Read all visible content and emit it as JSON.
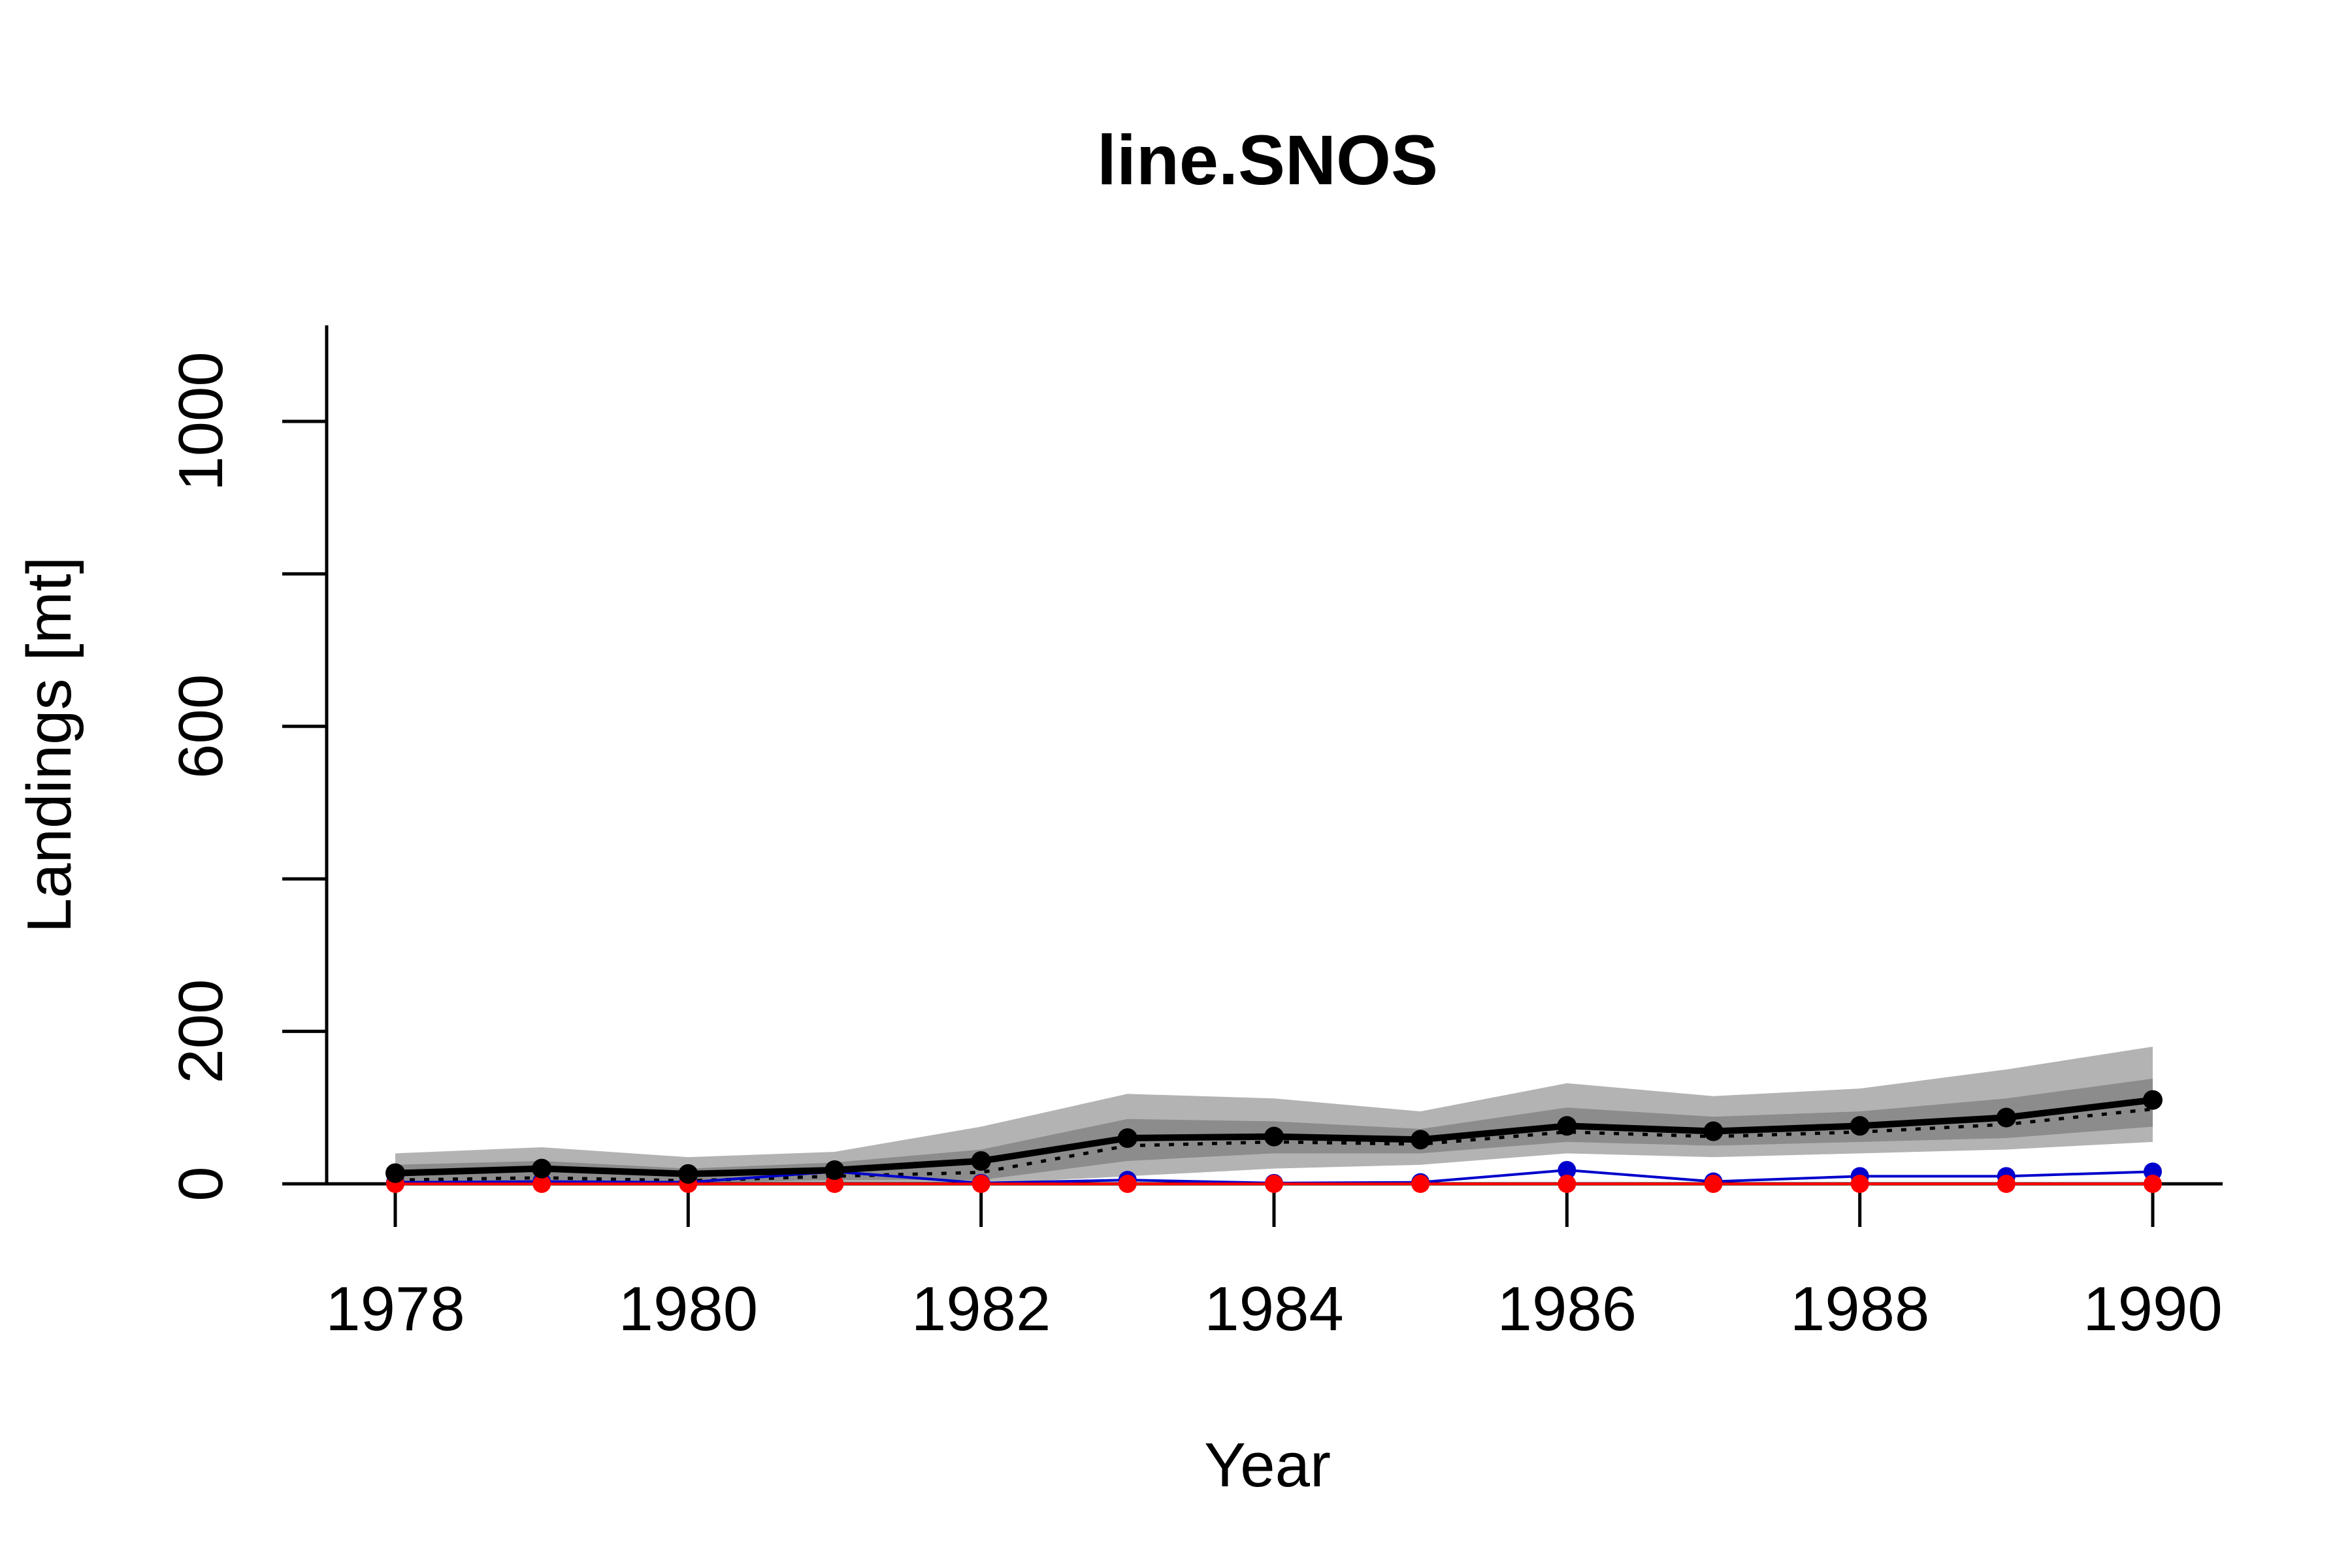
{
  "chart_data": {
    "type": "line",
    "title": "line.SNOS",
    "xlabel": "Year",
    "ylabel": "Landings [mt]",
    "xlim": [
      1977.5,
      1990.5
    ],
    "ylim": [
      0,
      1120
    ],
    "x_ticks": [
      1978,
      1980,
      1982,
      1984,
      1986,
      1988,
      1990
    ],
    "y_ticks": [
      0,
      200,
      400,
      600,
      800,
      1000
    ],
    "y_tick_labels": [
      "0",
      "200",
      "",
      "600",
      "",
      "1000"
    ],
    "grid": false,
    "x": [
      1978,
      1979,
      1980,
      1981,
      1982,
      1983,
      1984,
      1985,
      1986,
      1987,
      1988,
      1989,
      1990
    ],
    "bands": [
      {
        "color": "#b3b3b3",
        "lower": [
          0,
          0,
          0,
          0,
          0,
          10,
          20,
          25,
          40,
          35,
          40,
          45,
          55
        ],
        "upper": [
          40,
          48,
          35,
          42,
          75,
          118,
          112,
          95,
          132,
          115,
          125,
          150,
          180
        ]
      },
      {
        "color": "#8c8c8c",
        "lower": [
          2,
          4,
          1,
          5,
          5,
          30,
          40,
          40,
          55,
          50,
          55,
          60,
          75
        ],
        "upper": [
          25,
          30,
          20,
          28,
          45,
          85,
          82,
          72,
          100,
          88,
          95,
          112,
          138
        ]
      }
    ],
    "series": [
      {
        "role": "black line with points",
        "color": "#000000",
        "values": [
          14,
          20,
          13,
          18,
          30,
          60,
          62,
          58,
          76,
          69,
          76,
          87,
          110
        ]
      },
      {
        "role": "dotted line",
        "color": "#000000",
        "values": [
          5,
          8,
          4,
          10,
          15,
          50,
          55,
          52,
          68,
          62,
          68,
          78,
          98
        ]
      },
      {
        "role": "blue line with points",
        "color": "#0000cc",
        "values": [
          2,
          3,
          2,
          16,
          1,
          5,
          1,
          2,
          18,
          3,
          10,
          10,
          16
        ]
      },
      {
        "role": "red line with points",
        "color": "#ff0000",
        "values": [
          0,
          0,
          0,
          0,
          0,
          0,
          0,
          0,
          0,
          0,
          0,
          0,
          0
        ]
      }
    ]
  }
}
